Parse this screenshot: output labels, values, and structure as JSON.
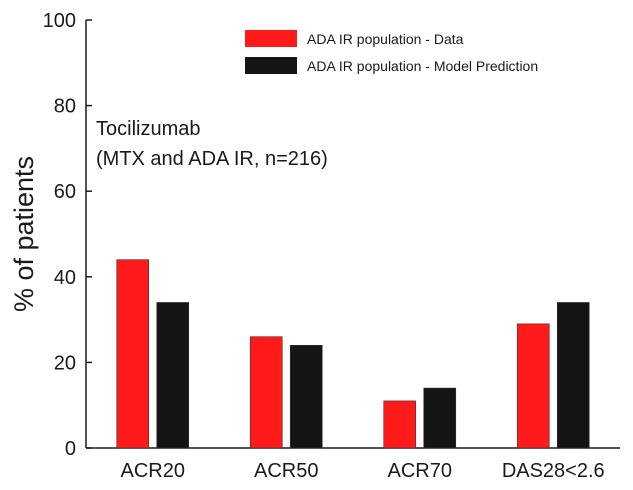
{
  "chart_data": {
    "type": "bar",
    "title": "",
    "xlabel": "",
    "ylabel": "% of patients",
    "ylim": [
      0,
      100
    ],
    "yticks": [
      0,
      20,
      40,
      60,
      80,
      100
    ],
    "categories": [
      "ACR20",
      "ACR50",
      "ACR70",
      "DAS28<2.6"
    ],
    "series": [
      {
        "name": "ADA IR population - Data",
        "color": "#ff1a1a",
        "values": [
          44,
          26,
          11,
          29
        ]
      },
      {
        "name": "ADA IR population - Model Prediction",
        "color": "#141414",
        "values": [
          34,
          24,
          14,
          34
        ]
      }
    ],
    "annotation": {
      "line1": "Tocilizumab",
      "line2": "(MTX and ADA IR, n=216)"
    },
    "legend_position": "top-right",
    "grid": false
  }
}
